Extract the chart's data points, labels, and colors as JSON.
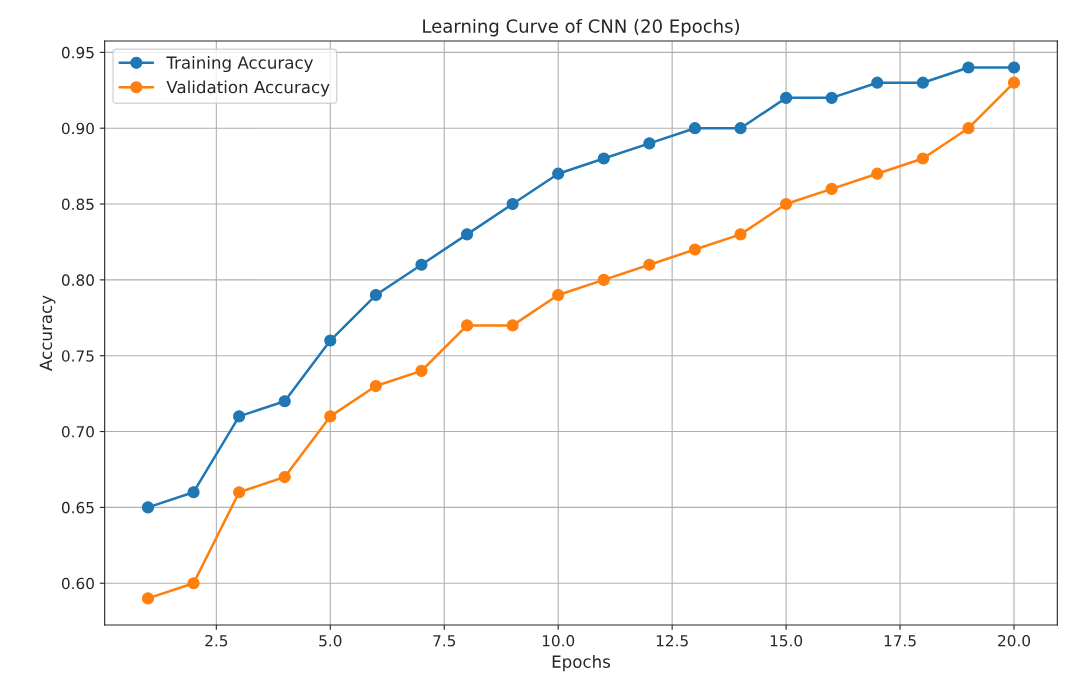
{
  "chart_data": {
    "type": "line",
    "title": "Learning Curve of CNN (20 Epochs)",
    "xlabel": "Epochs",
    "ylabel": "Accuracy",
    "x": [
      1,
      2,
      3,
      4,
      5,
      6,
      7,
      8,
      9,
      10,
      11,
      12,
      13,
      14,
      15,
      16,
      17,
      18,
      19,
      20
    ],
    "series": [
      {
        "name": "Training Accuracy",
        "color": "#1f77b4",
        "values": [
          0.65,
          0.66,
          0.71,
          0.72,
          0.76,
          0.79,
          0.81,
          0.83,
          0.85,
          0.87,
          0.88,
          0.89,
          0.9,
          0.9,
          0.92,
          0.92,
          0.93,
          0.93,
          0.94,
          0.94
        ]
      },
      {
        "name": "Validation Accuracy",
        "color": "#ff7f0e",
        "values": [
          0.59,
          0.6,
          0.66,
          0.67,
          0.71,
          0.73,
          0.74,
          0.77,
          0.77,
          0.79,
          0.8,
          0.81,
          0.82,
          0.83,
          0.85,
          0.86,
          0.87,
          0.88,
          0.9,
          0.93
        ]
      }
    ],
    "xlim": [
      0.05,
      20.95
    ],
    "xticks": [
      {
        "value": 2.5,
        "label": "2.5"
      },
      {
        "value": 5,
        "label": "5.0"
      },
      {
        "value": 7.5,
        "label": "7.5"
      },
      {
        "value": 10,
        "label": "10.0"
      },
      {
        "value": 12.5,
        "label": "12.5"
      },
      {
        "value": 15,
        "label": "15.0"
      },
      {
        "value": 17.5,
        "label": "17.5"
      },
      {
        "value": 20,
        "label": "20.0"
      }
    ],
    "ylim": [
      0.5725,
      0.9575
    ],
    "yticks": [
      {
        "value": 0.6,
        "label": "0.60"
      },
      {
        "value": 0.65,
        "label": "0.65"
      },
      {
        "value": 0.7,
        "label": "0.70"
      },
      {
        "value": 0.75,
        "label": "0.75"
      },
      {
        "value": 0.8,
        "label": "0.80"
      },
      {
        "value": 0.85,
        "label": "0.85"
      },
      {
        "value": 0.9,
        "label": "0.90"
      },
      {
        "value": 0.95,
        "label": "0.95"
      }
    ],
    "grid": true,
    "legend": "top left",
    "marker": "circle",
    "line_style": "solid"
  }
}
